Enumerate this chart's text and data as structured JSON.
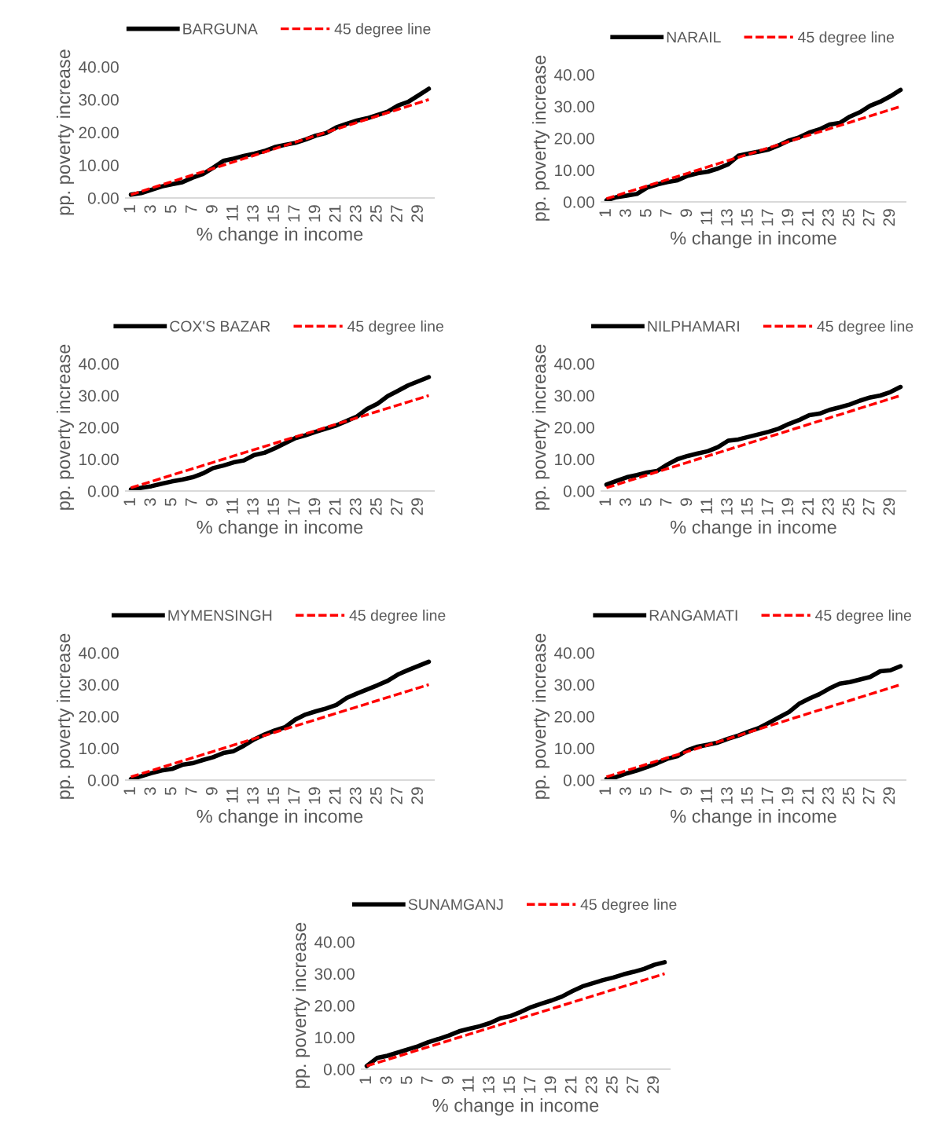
{
  "chart_data": [
    {
      "type": "line",
      "categories": [
        "1",
        null,
        "3",
        null,
        "5",
        null,
        "7",
        null,
        "9",
        null,
        "11",
        null,
        "13",
        null,
        "15",
        null,
        "17",
        null,
        "19",
        null,
        "21",
        null,
        "23",
        null,
        "25",
        null,
        "27",
        null,
        "29",
        null
      ],
      "xlabel": "% change in income",
      "ylabel": "pp. poverty increase",
      "ylim": [
        0,
        40
      ],
      "yticks": [
        {
          "value": 0,
          "label": "0.00"
        },
        {
          "value": 10,
          "label": "10.00"
        },
        {
          "value": 20,
          "label": "20.00"
        },
        {
          "value": 30,
          "label": "30.00"
        },
        {
          "value": 40,
          "label": "40.00"
        }
      ],
      "legend": "top",
      "grid": false,
      "series": [
        {
          "name": "BARGUNA",
          "color": "#000000",
          "line_style": "solid",
          "values": [
            1,
            1.5,
            2.5,
            3.5,
            4.2,
            4.8,
            6.2,
            7.3,
            9.2,
            11.3,
            12,
            12.8,
            13.5,
            14.3,
            15.5,
            16.2,
            16.8,
            17.8,
            19,
            19.8,
            21.5,
            22.6,
            23.6,
            24.3,
            25.3,
            26.3,
            28.2,
            29.3,
            31.3,
            33.3
          ]
        },
        {
          "name": "45 degree line",
          "color": "#ff0000",
          "line_style": "dashed",
          "values": [
            1,
            2,
            3,
            4,
            5,
            6,
            7,
            8,
            9,
            10,
            11,
            12,
            13,
            14,
            15,
            16,
            17,
            18,
            19,
            20,
            21,
            22,
            23,
            24,
            25,
            26,
            27,
            28,
            29,
            30
          ]
        }
      ]
    },
    {
      "type": "line",
      "categories": [
        "1",
        null,
        "3",
        null,
        "5",
        null,
        "7",
        null,
        "9",
        null,
        "11",
        null,
        "13",
        null,
        "15",
        null,
        "17",
        null,
        "19",
        null,
        "21",
        null,
        "23",
        null,
        "25",
        null,
        "27",
        null,
        "29",
        null
      ],
      "xlabel": "% change in income",
      "ylabel": "pp. poverty increase",
      "ylim": [
        0,
        40
      ],
      "yticks": [
        {
          "value": 0,
          "label": "0.00"
        },
        {
          "value": 10,
          "label": "10.00"
        },
        {
          "value": 20,
          "label": "20.00"
        },
        {
          "value": 30,
          "label": "30.00"
        },
        {
          "value": 40,
          "label": "40.00"
        }
      ],
      "legend": "top",
      "grid": false,
      "series": [
        {
          "name": "NARAIL",
          "color": "#000000",
          "line_style": "solid",
          "values": [
            0.5,
            1.5,
            2,
            2.5,
            4.5,
            5.5,
            6.2,
            6.8,
            8.2,
            9,
            9.5,
            10.5,
            11.8,
            14.5,
            15.2,
            15.8,
            16.5,
            17.8,
            19.3,
            20.3,
            21.8,
            22.8,
            24.3,
            24.8,
            26.8,
            28.2,
            30.2,
            31.5,
            33.2,
            35.2
          ]
        },
        {
          "name": "45 degree line",
          "color": "#ff0000",
          "line_style": "dashed",
          "values": [
            1,
            2,
            3,
            4,
            5,
            6,
            7,
            8,
            9,
            10,
            11,
            12,
            13,
            14,
            15,
            16,
            17,
            18,
            19,
            20,
            21,
            22,
            23,
            24,
            25,
            26,
            27,
            28,
            29,
            30
          ]
        }
      ]
    },
    {
      "type": "line",
      "categories": [
        "1",
        null,
        "3",
        null,
        "5",
        null,
        "7",
        null,
        "9",
        null,
        "11",
        null,
        "13",
        null,
        "15",
        null,
        "17",
        null,
        "19",
        null,
        "21",
        null,
        "23",
        null,
        "25",
        null,
        "27",
        null,
        "29",
        null
      ],
      "xlabel": "% change in income",
      "ylabel": "pp. poverty increase",
      "ylim": [
        0,
        40
      ],
      "yticks": [
        {
          "value": 0,
          "label": "0.00"
        },
        {
          "value": 10,
          "label": "10.00"
        },
        {
          "value": 20,
          "label": "20.00"
        },
        {
          "value": 30,
          "label": "30.00"
        },
        {
          "value": 40,
          "label": "40.00"
        }
      ],
      "legend": "top",
      "grid": false,
      "series": [
        {
          "name": "COX'S BAZAR",
          "color": "#000000",
          "line_style": "solid",
          "values": [
            0.5,
            1,
            1.5,
            2.3,
            3,
            3.6,
            4.3,
            5.5,
            7.2,
            8,
            9,
            9.6,
            11.3,
            12,
            13.4,
            15,
            16.6,
            17.5,
            18.6,
            19.6,
            20.6,
            22,
            23.4,
            25.8,
            27.4,
            29.8,
            31.5,
            33.2,
            34.5,
            35.8
          ]
        },
        {
          "name": "45 degree line",
          "color": "#ff0000",
          "line_style": "dashed",
          "values": [
            1,
            2,
            3,
            4,
            5,
            6,
            7,
            8,
            9,
            10,
            11,
            12,
            13,
            14,
            15,
            16,
            17,
            18,
            19,
            20,
            21,
            22,
            23,
            24,
            25,
            26,
            27,
            28,
            29,
            30
          ]
        }
      ]
    },
    {
      "type": "line",
      "categories": [
        "1",
        null,
        "3",
        null,
        "5",
        null,
        "7",
        null,
        "9",
        null,
        "11",
        null,
        "13",
        null,
        "15",
        null,
        "17",
        null,
        "19",
        null,
        "21",
        null,
        "23",
        null,
        "25",
        null,
        "27",
        null,
        "29",
        null
      ],
      "xlabel": "% change in income",
      "ylabel": "pp. poverty increase",
      "ylim": [
        0,
        40
      ],
      "yticks": [
        {
          "value": 0,
          "label": "0.00"
        },
        {
          "value": 10,
          "label": "10.00"
        },
        {
          "value": 20,
          "label": "20.00"
        },
        {
          "value": 30,
          "label": "30.00"
        },
        {
          "value": 40,
          "label": "40.00"
        }
      ],
      "legend": "top",
      "grid": false,
      "series": [
        {
          "name": "NILPHAMARI",
          "color": "#000000",
          "line_style": "solid",
          "values": [
            2,
            3.2,
            4.3,
            5,
            5.8,
            6.3,
            8.3,
            10,
            11,
            11.8,
            12.5,
            13.8,
            15.8,
            16.2,
            17,
            17.8,
            18.6,
            19.6,
            21.1,
            22.3,
            23.8,
            24.3,
            25.5,
            26.3,
            27.2,
            28.4,
            29.4,
            30,
            31.1,
            32.7
          ]
        },
        {
          "name": "45 degree line",
          "color": "#ff0000",
          "line_style": "dashed",
          "values": [
            1,
            2,
            3,
            4,
            5,
            6,
            7,
            8,
            9,
            10,
            11,
            12,
            13,
            14,
            15,
            16,
            17,
            18,
            19,
            20,
            21,
            22,
            23,
            24,
            25,
            26,
            27,
            28,
            29,
            30
          ]
        }
      ]
    },
    {
      "type": "line",
      "categories": [
        "1",
        null,
        "3",
        null,
        "5",
        null,
        "7",
        null,
        "9",
        null,
        "11",
        null,
        "13",
        null,
        "15",
        null,
        "17",
        null,
        "19",
        null,
        "21",
        null,
        "23",
        null,
        "25",
        null,
        "27",
        null,
        "29",
        null
      ],
      "xlabel": "% change in income",
      "ylabel": "pp. poverty increase",
      "ylim": [
        0,
        40
      ],
      "yticks": [
        {
          "value": 0,
          "label": "0.00"
        },
        {
          "value": 10,
          "label": "10.00"
        },
        {
          "value": 20,
          "label": "20.00"
        },
        {
          "value": 30,
          "label": "30.00"
        },
        {
          "value": 40,
          "label": "40.00"
        }
      ],
      "legend": "top",
      "grid": false,
      "series": [
        {
          "name": "MYMENSINGH",
          "color": "#000000",
          "line_style": "solid",
          "values": [
            0.3,
            1.2,
            2.2,
            3,
            3.5,
            4.8,
            5.3,
            6.3,
            7.2,
            8.5,
            9.1,
            10.8,
            12.8,
            14.3,
            15.6,
            16.6,
            19,
            20.6,
            21.6,
            22.5,
            23.6,
            25.8,
            27.2,
            28.5,
            29.8,
            31.2,
            33.2,
            34.6,
            35.9,
            37.2
          ]
        },
        {
          "name": "45 degree line",
          "color": "#ff0000",
          "line_style": "dashed",
          "values": [
            1,
            2,
            3,
            4,
            5,
            6,
            7,
            8,
            9,
            10,
            11,
            12,
            13,
            14,
            15,
            16,
            17,
            18,
            19,
            20,
            21,
            22,
            23,
            24,
            25,
            26,
            27,
            28,
            29,
            30
          ]
        }
      ]
    },
    {
      "type": "line",
      "categories": [
        "1",
        null,
        "3",
        null,
        "5",
        null,
        "7",
        null,
        "9",
        null,
        "11",
        null,
        "13",
        null,
        "15",
        null,
        "17",
        null,
        "19",
        null,
        "21",
        null,
        "23",
        null,
        "25",
        null,
        "27",
        null,
        "29",
        null
      ],
      "xlabel": "% change in income",
      "ylabel": "pp. poverty increase",
      "ylim": [
        0,
        40
      ],
      "yticks": [
        {
          "value": 0,
          "label": "0.00"
        },
        {
          "value": 10,
          "label": "10.00"
        },
        {
          "value": 20,
          "label": "20.00"
        },
        {
          "value": 30,
          "label": "30.00"
        },
        {
          "value": 40,
          "label": "40.00"
        }
      ],
      "legend": "top",
      "grid": false,
      "series": [
        {
          "name": "RANGAMATI",
          "color": "#000000",
          "line_style": "solid",
          "values": [
            0.3,
            1,
            2.1,
            3,
            4.1,
            5.3,
            6.7,
            7.5,
            9.4,
            10.5,
            11.1,
            11.8,
            13,
            14,
            15.2,
            16.3,
            18,
            19.7,
            21.4,
            24,
            25.6,
            27,
            28.8,
            30.3,
            30.8,
            31.6,
            32.4,
            34.2,
            34.5,
            35.8
          ]
        },
        {
          "name": "45 degree line",
          "color": "#ff0000",
          "line_style": "dashed",
          "values": [
            1,
            2,
            3,
            4,
            5,
            6,
            7,
            8,
            9,
            10,
            11,
            12,
            13,
            14,
            15,
            16,
            17,
            18,
            19,
            20,
            21,
            22,
            23,
            24,
            25,
            26,
            27,
            28,
            29,
            30
          ]
        }
      ]
    },
    {
      "type": "line",
      "categories": [
        "1",
        null,
        "3",
        null,
        "5",
        null,
        "7",
        null,
        "9",
        null,
        "11",
        null,
        "13",
        null,
        "15",
        null,
        "17",
        null,
        "19",
        null,
        "21",
        null,
        "23",
        null,
        "25",
        null,
        "27",
        null,
        "29",
        null
      ],
      "xlabel": "% change in income",
      "ylabel": "pp. poverty increase",
      "ylim": [
        0,
        40
      ],
      "yticks": [
        {
          "value": 0,
          "label": "0.00"
        },
        {
          "value": 10,
          "label": "10.00"
        },
        {
          "value": 20,
          "label": "20.00"
        },
        {
          "value": 30,
          "label": "30.00"
        },
        {
          "value": 40,
          "label": "40.00"
        }
      ],
      "legend": "top",
      "grid": false,
      "series": [
        {
          "name": "SUNAMGANJ",
          "color": "#000000",
          "line_style": "solid",
          "values": [
            1,
            3.5,
            4.2,
            5.2,
            6.2,
            7.2,
            8.5,
            9.5,
            10.6,
            11.9,
            12.7,
            13.5,
            14.5,
            16,
            16.7,
            18,
            19.5,
            20.6,
            21.6,
            22.8,
            24.5,
            26,
            27,
            28,
            28.8,
            29.8,
            30.6,
            31.5,
            32.8,
            33.6
          ]
        },
        {
          "name": "45 degree line",
          "color": "#ff0000",
          "line_style": "dashed",
          "values": [
            1,
            2,
            3,
            4,
            5,
            6,
            7,
            8,
            9,
            10,
            11,
            12,
            13,
            14,
            15,
            16,
            17,
            18,
            19,
            20,
            21,
            22,
            23,
            24,
            25,
            26,
            27,
            28,
            29,
            30
          ]
        }
      ]
    }
  ]
}
